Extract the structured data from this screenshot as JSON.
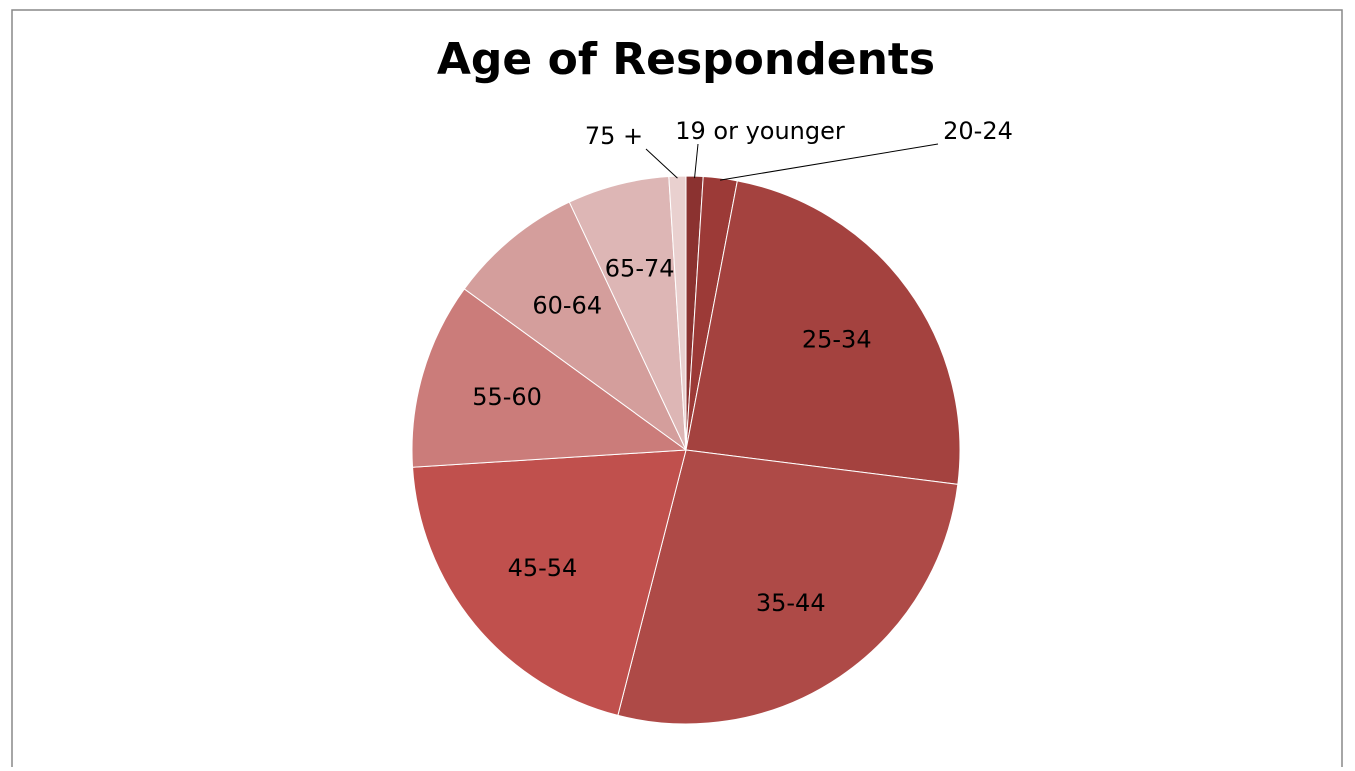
{
  "chart_data": {
    "type": "pie",
    "title": "Age of Respondents",
    "categories": [
      "19 or younger",
      "20-24",
      "25-34",
      "35-44",
      "45-54",
      "55-60",
      "60-64",
      "65-74",
      "75 +"
    ],
    "values": [
      1,
      2,
      24,
      27,
      20,
      11,
      8,
      6,
      1
    ],
    "colors": [
      "#8b3230",
      "#9c3a37",
      "#a4423f",
      "#ae4a47",
      "#c0504d",
      "#cb7c7a",
      "#d49e9c",
      "#ddb6b5",
      "#e9d0cf"
    ]
  }
}
